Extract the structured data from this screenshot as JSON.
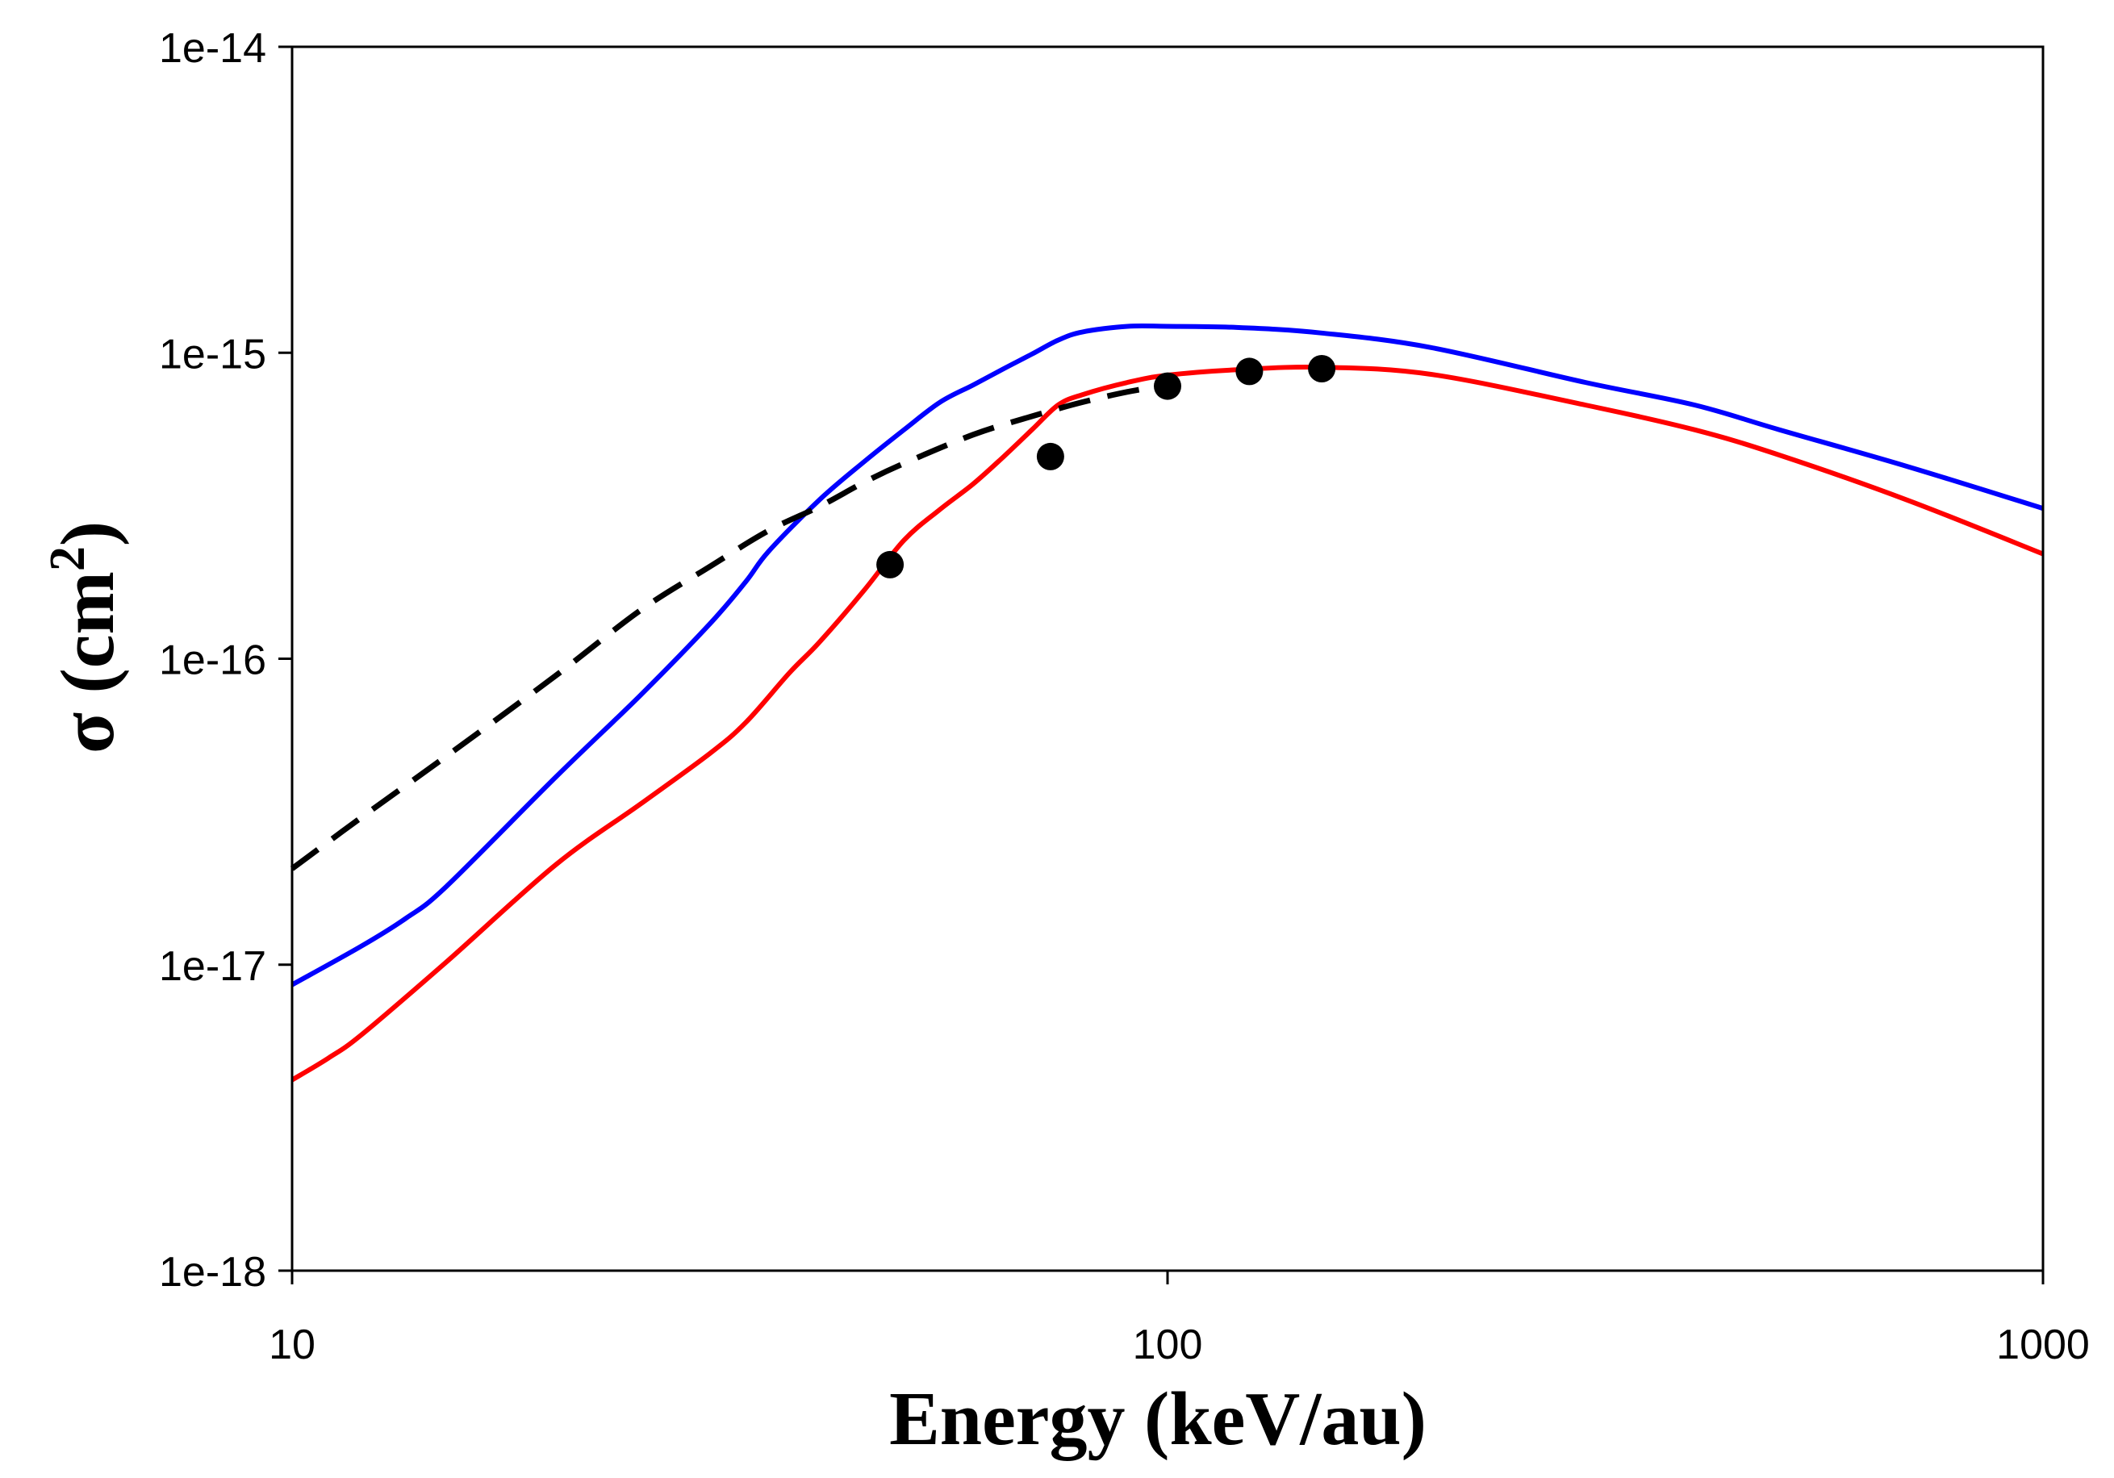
{
  "chart_data": {
    "type": "line",
    "xlabel": "Energy (keV/au)",
    "ylabel": {
      "prefix": "σ (cm",
      "superscript": "2",
      "suffix": ")"
    },
    "log_x": true,
    "log_y": true,
    "xlim": [
      10,
      1000
    ],
    "ylim": [
      1e-18,
      1e-14
    ],
    "grid": false,
    "x_ticks": [
      10,
      100,
      1000
    ],
    "x_tick_labels": [
      "10",
      "100",
      "1000"
    ],
    "y_ticks": [
      1e-18,
      1e-17,
      1e-16,
      1e-15,
      1e-14
    ],
    "y_tick_labels": [
      "1e-18",
      "1e-17",
      "1e-16",
      "1e-15",
      "1e-14"
    ],
    "series": [
      {
        "type": "line",
        "color": "#0000ff",
        "dashed": false,
        "x": [
          10,
          12,
          13.5,
          15,
          20,
          25,
          30,
          33,
          35,
          40,
          45,
          50,
          55,
          60,
          65,
          70,
          75,
          80,
          90,
          100,
          120,
          150,
          200,
          300,
          400,
          500,
          700,
          1000
        ],
        "y": [
          8.6e-18,
          1.15e-17,
          1.42e-17,
          1.8e-17,
          4.1e-17,
          7.6e-17,
          1.3e-16,
          1.79e-16,
          2.24e-16,
          3.3e-16,
          4.4e-16,
          5.6e-16,
          6.9e-16,
          7.85e-16,
          8.87e-16,
          9.9e-16,
          1.1e-15,
          1.17e-15,
          1.22e-15,
          1.22e-15,
          1.21e-15,
          1.16e-15,
          1.04e-15,
          8e-16,
          6.75e-16,
          5.6e-16,
          4.25e-16,
          3.1e-16
        ]
      },
      {
        "type": "line",
        "color": "#ff0000",
        "dashed": false,
        "x": [
          10,
          11,
          12,
          15,
          20,
          25,
          30,
          33,
          37,
          40,
          45,
          50,
          55,
          60,
          65,
          70,
          75,
          80,
          90,
          100,
          120,
          150,
          200,
          300,
          400,
          500,
          700,
          1000
        ],
        "y": [
          4.2e-18,
          4.95e-18,
          5.9e-18,
          1.02e-17,
          2.12e-17,
          3.35e-17,
          4.9e-17,
          6.2e-17,
          9e-17,
          1.13e-16,
          1.67e-16,
          2.44e-16,
          3.08e-16,
          3.73e-16,
          4.58e-16,
          5.6e-16,
          6.75e-16,
          7.3e-16,
          8e-16,
          8.45e-16,
          8.8e-16,
          8.97e-16,
          8.5e-16,
          6.75e-16,
          5.6e-16,
          4.63e-16,
          3.3e-16,
          2.2e-16
        ]
      },
      {
        "type": "line",
        "color": "#000000",
        "dashed": true,
        "x": [
          10,
          12,
          15,
          20,
          25,
          30,
          35,
          40,
          45,
          50,
          60,
          70,
          80,
          90,
          100
        ],
        "y": [
          2.06e-17,
          3.03e-17,
          4.8e-17,
          8.8e-17,
          1.44e-16,
          2e-16,
          2.62e-16,
          3.14e-16,
          3.77e-16,
          4.35e-16,
          5.4e-16,
          6.2e-16,
          6.9e-16,
          7.45e-16,
          7.85e-16
        ]
      },
      {
        "type": "scatter",
        "color": "#000000",
        "x": [
          48.2,
          73.5,
          100,
          124,
          150
        ],
        "y": [
          2.03e-16,
          4.58e-16,
          7.78e-16,
          8.69e-16,
          8.87e-16
        ]
      }
    ]
  }
}
